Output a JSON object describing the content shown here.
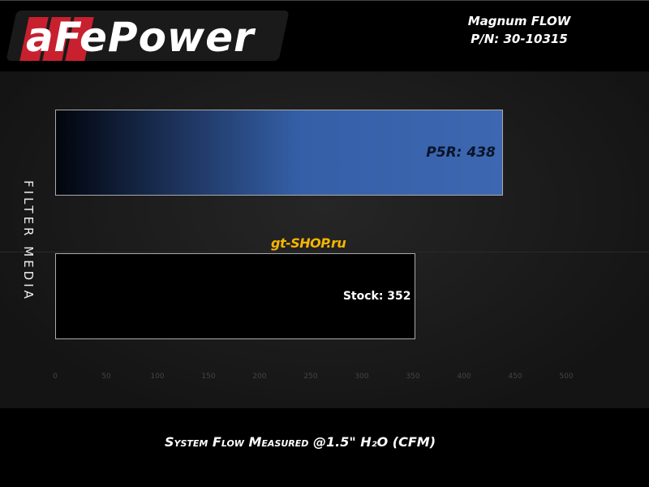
{
  "brand": {
    "logo_text": "aFePower"
  },
  "product": {
    "name": "Magnum FLOW",
    "part_number": "P/N: 30-10315"
  },
  "watermark": "gt-SHOP.ru",
  "chart_data": {
    "type": "bar",
    "orientation": "horizontal",
    "categories": [
      "P5R",
      "Stock"
    ],
    "values": [
      438,
      352
    ],
    "data_labels": [
      "P5R: 438",
      "Stock: 352"
    ],
    "xlabel": "System Flow Measured @1.5\" H₂O (CFM)",
    "ylabel": "FILTER MEDIA",
    "xlim": [
      0,
      500
    ],
    "xticks": [
      "0",
      "50",
      "100",
      "150",
      "200",
      "250",
      "300",
      "350",
      "400",
      "450",
      "500"
    ],
    "grid": false,
    "colors": {
      "P5R": "#3d67b0",
      "Stock": "#000000"
    }
  }
}
